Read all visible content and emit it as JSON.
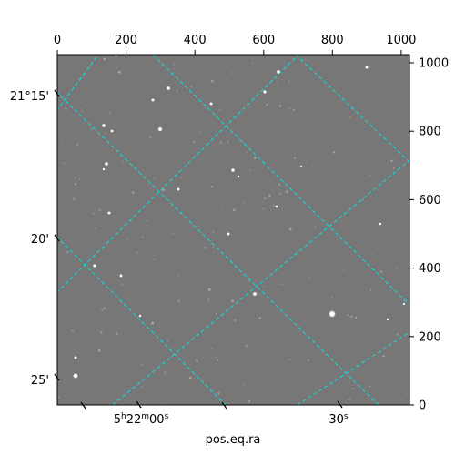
{
  "chart_data": {
    "type": "image",
    "xlabel": "pos.eq.ra",
    "ylabel": "",
    "pixel_axes": {
      "x_range": [
        0,
        1024
      ],
      "y_range": [
        0,
        1024
      ],
      "top_ticks": [
        0,
        200,
        400,
        600,
        800,
        1000
      ],
      "right_ticks": [
        0,
        200,
        400,
        600,
        800,
        1000
      ]
    },
    "world_axes": {
      "ra_tick_labels": [
        "5h22m00s",
        "30s"
      ],
      "dec_tick_labels": [
        "21°15'",
        "20'",
        "25'"
      ]
    },
    "colors": {
      "grid": "#00e5e5",
      "sky": "#7a7a7a",
      "frame": "#000000"
    }
  },
  "labels": {
    "top_ticks": [
      "0",
      "200",
      "400",
      "600",
      "800",
      "1000"
    ],
    "right_ticks": [
      "0",
      "200",
      "400",
      "600",
      "800",
      "1000"
    ],
    "dec": [
      "21°15'",
      "20'",
      "25'"
    ],
    "ra_main": "5",
    "ra_h": "h",
    "ra_22": "22",
    "ra_m": "m",
    "ra_00": "00",
    "ra_s": "s",
    "ra2_main": "30",
    "ra2_s": "s",
    "xlabel": "pos.eq.ra"
  }
}
